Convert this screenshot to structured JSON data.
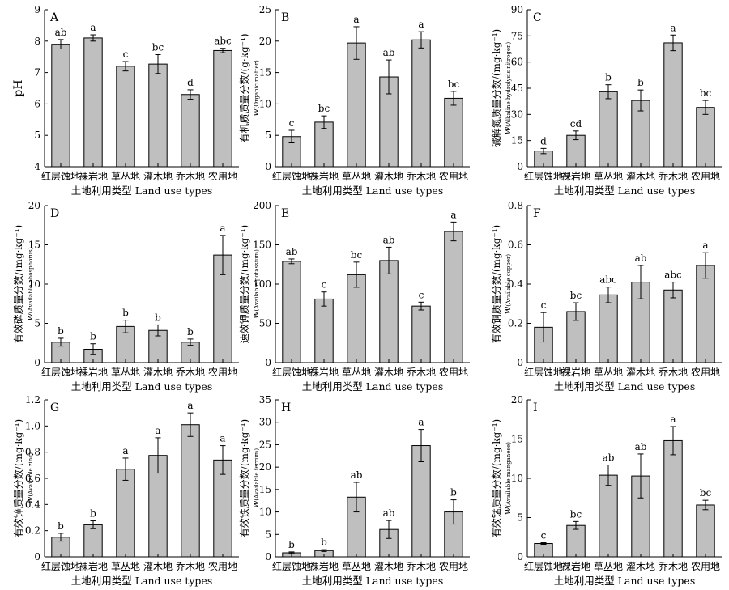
{
  "figure": {
    "categories": [
      "红层蚀地",
      "裸岩地",
      "草丛地",
      "灌木地",
      "乔木地",
      "农用地"
    ],
    "xlabel": "土地利用类型  Land use types",
    "bar_color": "#bfbfbf"
  },
  "chart_data": [
    {
      "type": "bar",
      "panel": "A",
      "ylabel": {
        "main": "pH",
        "sub": "",
        "unit": ""
      },
      "ylim": [
        4,
        9
      ],
      "yticks": [
        4,
        5,
        6,
        7,
        8,
        9
      ],
      "tick_labels": [
        "4",
        "5",
        "6",
        "7",
        "8",
        "9"
      ],
      "categories": [
        "红层蚀地",
        "裸岩地",
        "草丛地",
        "灌木地",
        "乔木地",
        "农用地"
      ],
      "values": [
        7.9,
        8.1,
        7.2,
        7.27,
        6.3,
        7.7
      ],
      "errors": [
        0.15,
        0.1,
        0.15,
        0.3,
        0.15,
        0.07
      ],
      "significance": [
        "ab",
        "a",
        "c",
        "bc",
        "d",
        "abc"
      ]
    },
    {
      "type": "bar",
      "panel": "B",
      "ylabel": {
        "main": "有机质质量分数",
        "sub": "(Organic matter)",
        "unit": "/(g·kg⁻¹)"
      },
      "ylim": [
        0,
        25
      ],
      "yticks": [
        0,
        5,
        10,
        15,
        20,
        25
      ],
      "tick_labels": [
        "0",
        "5",
        "10",
        "15",
        "20",
        "25"
      ],
      "categories": [
        "红层蚀地",
        "裸岩地",
        "草丛地",
        "灌木地",
        "乔木地",
        "农用地"
      ],
      "values": [
        4.8,
        7.1,
        19.7,
        14.3,
        20.2,
        10.9
      ],
      "errors": [
        1.0,
        1.0,
        2.6,
        2.7,
        1.3,
        1.1
      ],
      "significance": [
        "c",
        "bc",
        "a",
        "ab",
        "a",
        "bc"
      ]
    },
    {
      "type": "bar",
      "panel": "C",
      "ylabel": {
        "main": "碱解氮质量分数",
        "sub": "(Alkaline hydrolysis nitrogen)",
        "unit": "/(mg·kg⁻¹)"
      },
      "ylim": [
        0,
        90
      ],
      "yticks": [
        0,
        15,
        30,
        45,
        60,
        75,
        90
      ],
      "tick_labels": [
        "0",
        "15",
        "30",
        "45",
        "60",
        "75",
        "90"
      ],
      "categories": [
        "红层蚀地",
        "裸岩地",
        "草丛地",
        "灌木地",
        "乔木地",
        "农用地"
      ],
      "values": [
        9,
        18,
        43,
        38,
        71,
        34
      ],
      "errors": [
        1.5,
        2.5,
        4,
        6,
        4.5,
        4
      ],
      "significance": [
        "d",
        "cd",
        "b",
        "b",
        "a",
        "bc"
      ]
    },
    {
      "type": "bar",
      "panel": "D",
      "ylabel": {
        "main": "有效磷质量分数",
        "sub": "(Available phosphorus)",
        "unit": "/(mg·kg⁻¹)"
      },
      "ylim": [
        0,
        20
      ],
      "yticks": [
        0,
        5,
        10,
        15,
        20
      ],
      "tick_labels": [
        "0",
        "5",
        "10",
        "15",
        "20"
      ],
      "categories": [
        "红层蚀地",
        "裸岩地",
        "草丛地",
        "灌木地",
        "乔木地",
        "农用地"
      ],
      "values": [
        2.6,
        1.7,
        4.6,
        4.1,
        2.6,
        13.7
      ],
      "errors": [
        0.5,
        0.7,
        0.8,
        0.7,
        0.4,
        2.5
      ],
      "significance": [
        "b",
        "b",
        "b",
        "b",
        "b",
        "a"
      ]
    },
    {
      "type": "bar",
      "panel": "E",
      "ylabel": {
        "main": "速效钾质量分数",
        "sub": "(Available potassium)",
        "unit": "/(mg·kg⁻¹)"
      },
      "ylim": [
        0,
        200
      ],
      "yticks": [
        0,
        50,
        100,
        150,
        200
      ],
      "tick_labels": [
        "0",
        "50",
        "100",
        "150",
        "200"
      ],
      "categories": [
        "红层蚀地",
        "裸岩地",
        "草丛地",
        "灌木地",
        "乔木地",
        "农用地"
      ],
      "values": [
        129,
        81,
        112,
        130,
        72,
        167
      ],
      "errors": [
        3,
        9,
        16,
        17,
        5,
        12
      ],
      "significance": [
        "ab",
        "c",
        "bc",
        "ab",
        "c",
        "a"
      ]
    },
    {
      "type": "bar",
      "panel": "F",
      "ylabel": {
        "main": "有效铜质量分数",
        "sub": "(Available copper)",
        "unit": "/(mg·kg⁻¹)"
      },
      "ylim": [
        0,
        0.8
      ],
      "yticks": [
        0,
        0.2,
        0.4,
        0.6,
        0.8
      ],
      "tick_labels": [
        "0",
        "0.2",
        "0.4",
        "0.6",
        "0.8"
      ],
      "categories": [
        "红层蚀地",
        "裸岩地",
        "草丛地",
        "灌木地",
        "乔木地",
        "农用地"
      ],
      "values": [
        0.18,
        0.26,
        0.345,
        0.41,
        0.37,
        0.495
      ],
      "errors": [
        0.075,
        0.045,
        0.04,
        0.085,
        0.04,
        0.065
      ],
      "significance": [
        "c",
        "bc",
        "abc",
        "ab",
        "abc",
        "a"
      ]
    },
    {
      "type": "bar",
      "panel": "G",
      "ylabel": {
        "main": "有效锌质量分数",
        "sub": "(Available zinc)",
        "unit": "/(mg·kg⁻¹)"
      },
      "ylim": [
        0,
        1.2
      ],
      "yticks": [
        0,
        0.2,
        0.4,
        0.6,
        0.8,
        1.0,
        1.2
      ],
      "tick_labels": [
        "0",
        "0.2",
        "0.4",
        "0.6",
        "0.8",
        "1.0",
        "1.2"
      ],
      "categories": [
        "红层蚀地",
        "裸岩地",
        "草丛地",
        "灌木地",
        "乔木地",
        "农用地"
      ],
      "values": [
        0.15,
        0.245,
        0.67,
        0.775,
        1.01,
        0.74
      ],
      "errors": [
        0.03,
        0.03,
        0.085,
        0.135,
        0.09,
        0.11
      ],
      "significance": [
        "b",
        "b",
        "a",
        "a",
        "a",
        "a"
      ]
    },
    {
      "type": "bar",
      "panel": "H",
      "ylabel": {
        "main": "有效铁质量分数",
        "sub": "(Available ferrum)",
        "unit": "/(mg·kg⁻¹)"
      },
      "ylim": [
        0,
        35
      ],
      "yticks": [
        0,
        5,
        10,
        15,
        20,
        25,
        30,
        35
      ],
      "tick_labels": [
        "0",
        "5",
        "10",
        "15",
        "20",
        "25",
        "30",
        "35"
      ],
      "categories": [
        "红层蚀地",
        "裸岩地",
        "草丛地",
        "灌木地",
        "乔木地",
        "农用地"
      ],
      "values": [
        0.9,
        1.4,
        13.3,
        6.1,
        24.8,
        10
      ],
      "errors": [
        0.2,
        0.2,
        3.3,
        2.0,
        3.6,
        2.7
      ],
      "significance": [
        "b",
        "b",
        "ab",
        "ab",
        "a",
        "b"
      ]
    },
    {
      "type": "bar",
      "panel": "I",
      "ylabel": {
        "main": "有效锰质量分数",
        "sub": "(Available manganese)",
        "unit": "/(mg·kg⁻¹)"
      },
      "ylim": [
        0,
        20
      ],
      "yticks": [
        0,
        5,
        10,
        15,
        20
      ],
      "tick_labels": [
        "0",
        "5",
        "10",
        "15",
        "20"
      ],
      "categories": [
        "红层蚀地",
        "裸岩地",
        "草丛地",
        "灌木地",
        "乔木地",
        "农用地"
      ],
      "values": [
        1.7,
        4.0,
        10.4,
        10.3,
        14.8,
        6.6
      ],
      "errors": [
        0.1,
        0.5,
        1.3,
        2.8,
        1.8,
        0.6
      ],
      "significance": [
        "c",
        "bc",
        "ab",
        "ab",
        "a",
        "bc"
      ]
    }
  ]
}
